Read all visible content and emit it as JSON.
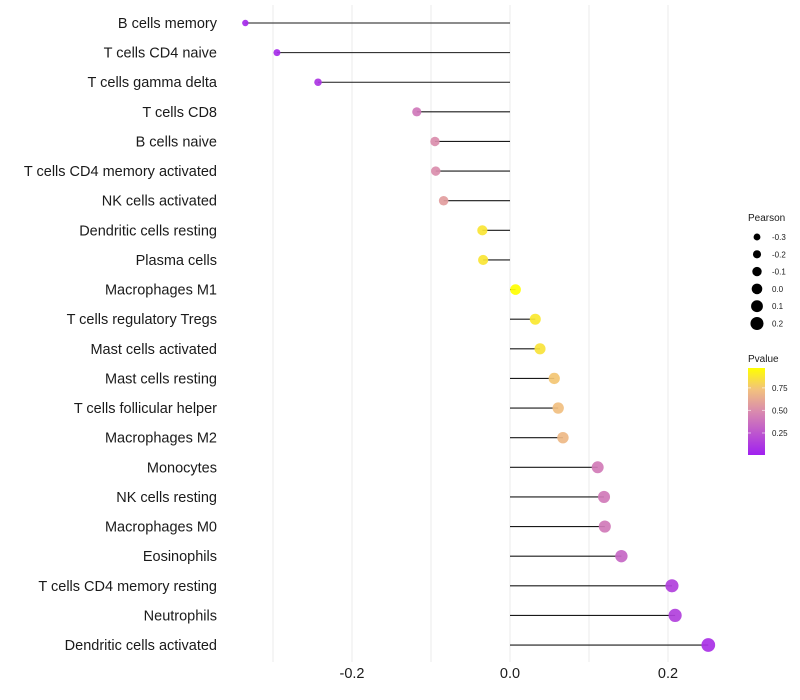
{
  "chart_data": {
    "type": "lollipop",
    "title": "",
    "xlabel": "",
    "ylabel": "",
    "xlim": [
      -0.34,
      0.265
    ],
    "x_ticks": [
      {
        "value": -0.2,
        "label": "-0.2"
      },
      {
        "value": 0.0,
        "label": "0.0"
      },
      {
        "value": 0.2,
        "label": "0.2"
      }
    ],
    "x_minor_gridlines": [
      -0.3,
      -0.1,
      0.1
    ],
    "grid": true,
    "baseline": 0.0,
    "categories": [
      "B cells memory",
      "T cells CD4 naive",
      "T cells gamma delta",
      "T cells CD8",
      "B cells naive",
      "T cells CD4 memory activated",
      "NK cells activated",
      "Dendritic cells resting",
      "Plasma cells",
      "Macrophages M1",
      "T cells regulatory  Tregs ",
      "Mast cells activated",
      "Mast cells resting",
      "T cells follicular helper",
      "Macrophages M2",
      "Monocytes",
      "NK cells resting",
      "Macrophages M0",
      "Eosinophils",
      "T cells CD4 memory resting",
      "Neutrophils",
      "Dendritic cells activated"
    ],
    "series": [
      {
        "name": "Pearson",
        "values": [
          -0.335,
          -0.295,
          -0.243,
          -0.118,
          -0.095,
          -0.094,
          -0.084,
          -0.035,
          -0.034,
          0.007,
          0.032,
          0.038,
          0.056,
          0.061,
          0.067,
          0.111,
          0.119,
          0.12,
          0.141,
          0.205,
          0.209,
          0.251
        ]
      },
      {
        "name": "Pvalue",
        "values": [
          0.05,
          0.06,
          0.1,
          0.4,
          0.5,
          0.5,
          0.57,
          0.87,
          0.87,
          0.97,
          0.88,
          0.86,
          0.75,
          0.72,
          0.69,
          0.42,
          0.41,
          0.41,
          0.33,
          0.15,
          0.15,
          0.08
        ]
      }
    ],
    "size_encoding": "Pearson",
    "color_encoding": "Pvalue",
    "legend": {
      "position": "right",
      "size_legend": {
        "title": "Pearson",
        "entries": [
          {
            "value": -0.3,
            "label": "-0.3"
          },
          {
            "value": -0.2,
            "label": "-0.2"
          },
          {
            "value": -0.1,
            "label": "-0.1"
          },
          {
            "value": 0.0,
            "label": "0.0"
          },
          {
            "value": 0.1,
            "label": "0.1"
          },
          {
            "value": 0.2,
            "label": "0.2"
          }
        ]
      },
      "color_legend": {
        "title": "Pvalue",
        "range": [
          0.006,
          0.97
        ],
        "ticks": [
          {
            "value": 0.25,
            "label": "0.25"
          },
          {
            "value": 0.5,
            "label": "0.50"
          },
          {
            "value": 0.75,
            "label": "0.75"
          }
        ],
        "gradient_colors": [
          {
            "stop": 0.0,
            "color": "#A020F0"
          },
          {
            "stop": 0.5,
            "color": "#D98AAE"
          },
          {
            "stop": 0.75,
            "color": "#F2C17E"
          },
          {
            "stop": 1.0,
            "color": "#FFFF00"
          }
        ]
      }
    }
  },
  "colors": {
    "gridline": "#EBEBEB",
    "segment": "#1a1a1a",
    "text": "#1a1a1a"
  }
}
